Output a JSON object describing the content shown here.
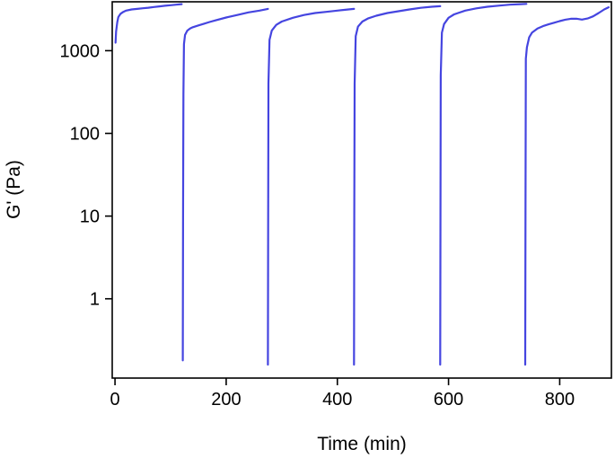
{
  "chart_data": {
    "type": "line",
    "title": "",
    "xlabel": "Time (min)",
    "ylabel": "G' (Pa)",
    "xlim": [
      -5,
      893
    ],
    "ylim": [
      0.11,
      3900
    ],
    "y_scale": "log",
    "grid": false,
    "legend": "none",
    "line_color": "#4545e0",
    "x_ticks": [
      0,
      200,
      400,
      600,
      800
    ],
    "x_tick_labels": [
      "0",
      "200",
      "400",
      "600",
      "800"
    ],
    "y_ticks": [
      1,
      10,
      100,
      1000
    ],
    "y_tick_labels": [
      "1",
      "10",
      "100",
      "1000"
    ],
    "series": [
      {
        "x": [
          1,
          2,
          4,
          6,
          10,
          15,
          20,
          30,
          40,
          50,
          60,
          70,
          80,
          90,
          100,
          110,
          120
        ],
        "y": [
          1250,
          1700,
          2200,
          2550,
          2800,
          2950,
          3050,
          3150,
          3200,
          3260,
          3310,
          3370,
          3430,
          3490,
          3550,
          3600,
          3650
        ]
      },
      {
        "x": [
          122,
          122.5,
          123,
          124,
          126,
          130,
          135,
          140,
          150,
          160,
          170,
          180,
          200,
          220,
          240,
          260,
          275
        ],
        "y": [
          0.18,
          10,
          300,
          1200,
          1550,
          1750,
          1850,
          1920,
          2020,
          2120,
          2220,
          2320,
          2520,
          2700,
          2900,
          3050,
          3200
        ]
      },
      {
        "x": [
          275,
          275.5,
          276,
          278,
          282,
          290,
          300,
          320,
          340,
          360,
          380,
          400,
          420,
          430
        ],
        "y": [
          0.16,
          10,
          400,
          1350,
          1750,
          2050,
          2250,
          2500,
          2700,
          2850,
          2950,
          3050,
          3150,
          3200
        ]
      },
      {
        "x": [
          430,
          430.5,
          431,
          433,
          437,
          445,
          455,
          470,
          490,
          510,
          530,
          550,
          570,
          585
        ],
        "y": [
          0.16,
          10,
          400,
          1500,
          1950,
          2250,
          2450,
          2650,
          2850,
          3000,
          3150,
          3300,
          3400,
          3450
        ]
      },
      {
        "x": [
          585,
          585.5,
          586,
          588,
          592,
          600,
          610,
          630,
          650,
          670,
          690,
          710,
          730,
          740
        ],
        "y": [
          0.16,
          10,
          500,
          1650,
          2100,
          2500,
          2750,
          3050,
          3250,
          3400,
          3500,
          3600,
          3650,
          3680
        ]
      },
      {
        "x": [
          738,
          738.5,
          739,
          741,
          745,
          750,
          760,
          770,
          780,
          790,
          800,
          810,
          820,
          830,
          840,
          850,
          860,
          870,
          880,
          888
        ],
        "y": [
          0.16,
          10,
          800,
          1100,
          1450,
          1650,
          1850,
          1980,
          2080,
          2180,
          2280,
          2370,
          2430,
          2440,
          2380,
          2450,
          2600,
          2850,
          3150,
          3350
        ]
      }
    ]
  }
}
